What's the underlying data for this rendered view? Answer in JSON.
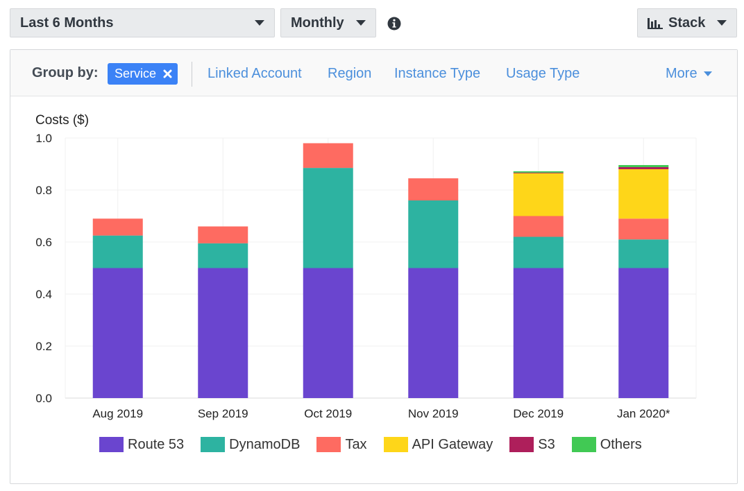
{
  "toolbar": {
    "range_label": "Last 6 Months",
    "granularity_label": "Monthly",
    "chart_style_label": "Stack"
  },
  "group_by": {
    "label": "Group by:",
    "active_chip": "Service",
    "options": [
      "Linked Account",
      "Region",
      "Instance Type",
      "Usage Type"
    ],
    "more_label": "More"
  },
  "colors": {
    "accent": "#3b82f6",
    "link": "#4b8fdc",
    "route53": "#6a45cf",
    "dynamodb": "#2db3a1",
    "tax": "#fe6b61",
    "api_gateway": "#fed619",
    "s3": "#ae1f5b",
    "others": "#41c954"
  },
  "chart_data": {
    "type": "bar",
    "stacked": true,
    "title": "",
    "ylabel": "Costs ($)",
    "xlabel": "",
    "ylim": [
      0,
      1.0
    ],
    "yticks": [
      "0.0",
      "0.2",
      "0.4",
      "0.6",
      "0.8",
      "1.0"
    ],
    "categories": [
      "Aug 2019",
      "Sep 2019",
      "Oct 2019",
      "Nov 2019",
      "Dec 2019",
      "Jan 2020*"
    ],
    "series": [
      {
        "name": "Route 53",
        "color": "#6a45cf",
        "values": [
          0.5,
          0.5,
          0.5,
          0.5,
          0.5,
          0.5
        ]
      },
      {
        "name": "DynamoDB",
        "color": "#2db3a1",
        "values": [
          0.125,
          0.095,
          0.385,
          0.26,
          0.12,
          0.11
        ]
      },
      {
        "name": "Tax",
        "color": "#fe6b61",
        "values": [
          0.065,
          0.065,
          0.095,
          0.085,
          0.08,
          0.08
        ]
      },
      {
        "name": "API Gateway",
        "color": "#fed619",
        "values": [
          0,
          0,
          0,
          0,
          0.165,
          0.19
        ]
      },
      {
        "name": "S3",
        "color": "#ae1f5b",
        "values": [
          0,
          0,
          0,
          0,
          0.002,
          0.008
        ]
      },
      {
        "name": "Others",
        "color": "#41c954",
        "values": [
          0,
          0,
          0,
          0,
          0.005,
          0.008
        ]
      }
    ]
  }
}
